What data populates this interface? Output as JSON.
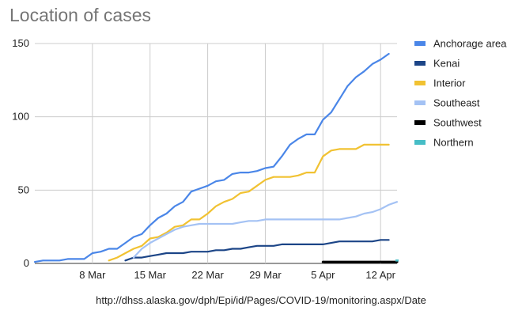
{
  "chart_data": {
    "type": "line",
    "title": "Location of cases",
    "xlabel": "",
    "ylabel": "",
    "ylim": [
      0,
      150
    ],
    "y_ticks": [
      0,
      50,
      100,
      150
    ],
    "x_tick_labels": [
      "8 Mar",
      "15 Mar",
      "22 Mar",
      "29 Mar",
      "5 Apr",
      "12 Apr"
    ],
    "x_tick_dates": [
      "2020-03-08",
      "2020-03-15",
      "2020-03-22",
      "2020-03-29",
      "2020-04-05",
      "2020-04-12"
    ],
    "x": [
      "2020-03-01",
      "2020-03-02",
      "2020-03-03",
      "2020-03-04",
      "2020-03-05",
      "2020-03-06",
      "2020-03-07",
      "2020-03-08",
      "2020-03-09",
      "2020-03-10",
      "2020-03-11",
      "2020-03-12",
      "2020-03-13",
      "2020-03-14",
      "2020-03-15",
      "2020-03-16",
      "2020-03-17",
      "2020-03-18",
      "2020-03-19",
      "2020-03-20",
      "2020-03-21",
      "2020-03-22",
      "2020-03-23",
      "2020-03-24",
      "2020-03-25",
      "2020-03-26",
      "2020-03-27",
      "2020-03-28",
      "2020-03-29",
      "2020-03-30",
      "2020-03-31",
      "2020-04-01",
      "2020-04-02",
      "2020-04-03",
      "2020-04-04",
      "2020-04-05",
      "2020-04-06",
      "2020-04-07",
      "2020-04-08",
      "2020-04-09",
      "2020-04-10",
      "2020-04-11",
      "2020-04-12",
      "2020-04-13",
      "2020-04-14"
    ],
    "grid": true,
    "legend_position": "right",
    "series": [
      {
        "name": "Anchorage area",
        "color": "#4a86e8",
        "values": [
          1,
          2,
          2,
          2,
          3,
          3,
          3,
          7,
          8,
          10,
          10,
          14,
          18,
          20,
          26,
          31,
          34,
          39,
          42,
          49,
          51,
          53,
          56,
          57,
          61,
          62,
          62,
          63,
          65,
          66,
          73,
          81,
          85,
          88,
          88,
          98,
          103,
          112,
          121,
          127,
          131,
          136,
          139,
          143,
          null
        ]
      },
      {
        "name": "Kenai",
        "color": "#1c4587",
        "values": [
          null,
          null,
          null,
          null,
          null,
          null,
          null,
          null,
          null,
          null,
          null,
          2,
          4,
          4,
          5,
          6,
          7,
          7,
          7,
          8,
          8,
          8,
          9,
          9,
          10,
          10,
          11,
          12,
          12,
          12,
          13,
          13,
          13,
          13,
          13,
          13,
          14,
          15,
          15,
          15,
          15,
          15,
          16,
          16,
          null
        ]
      },
      {
        "name": "Interior",
        "color": "#f1c232",
        "values": [
          null,
          null,
          null,
          null,
          null,
          null,
          null,
          null,
          null,
          2,
          4,
          7,
          10,
          12,
          17,
          18,
          21,
          25,
          26,
          30,
          30,
          34,
          39,
          42,
          44,
          48,
          49,
          53,
          57,
          59,
          59,
          59,
          60,
          62,
          62,
          73,
          77,
          78,
          78,
          78,
          81,
          81,
          81,
          81,
          null
        ]
      },
      {
        "name": "Southeast",
        "color": "#a4c2f4",
        "values": [
          null,
          null,
          null,
          null,
          null,
          null,
          null,
          null,
          null,
          null,
          null,
          null,
          4,
          10,
          14,
          17,
          20,
          23,
          25,
          26,
          27,
          27,
          27,
          27,
          27,
          28,
          29,
          29,
          30,
          30,
          30,
          30,
          30,
          30,
          30,
          30,
          30,
          30,
          31,
          32,
          34,
          35,
          37,
          40,
          42
        ]
      },
      {
        "name": "Southwest",
        "color": "#000000",
        "values": [
          null,
          null,
          null,
          null,
          null,
          null,
          null,
          null,
          null,
          null,
          null,
          null,
          null,
          null,
          null,
          null,
          null,
          null,
          null,
          null,
          null,
          null,
          null,
          null,
          null,
          null,
          null,
          null,
          null,
          null,
          null,
          null,
          null,
          null,
          null,
          1,
          1,
          1,
          1,
          1,
          1,
          1,
          1,
          1,
          1
        ]
      },
      {
        "name": "Northern",
        "color": "#46bdc6",
        "values": [
          null,
          null,
          null,
          null,
          null,
          null,
          null,
          null,
          null,
          null,
          null,
          null,
          null,
          null,
          null,
          null,
          null,
          null,
          null,
          null,
          null,
          null,
          null,
          null,
          null,
          null,
          null,
          null,
          null,
          null,
          null,
          null,
          null,
          null,
          null,
          null,
          null,
          null,
          null,
          null,
          null,
          null,
          null,
          null,
          2
        ]
      }
    ]
  },
  "source_note": "http://dhss.alaska.gov/dph/Epi/id/Pages/COVID-19/monitoring.aspx/Date"
}
